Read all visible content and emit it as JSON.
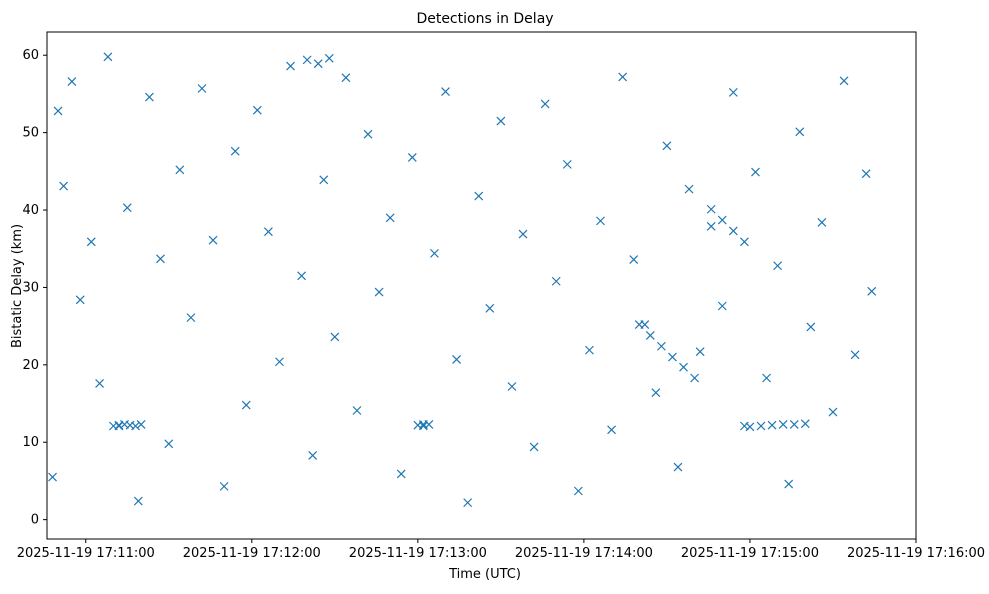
{
  "chart_data": {
    "type": "scatter",
    "title": "Detections in Delay",
    "xlabel": "Time (UTC)",
    "ylabel": "Bistatic Delay (km)",
    "xlim": [
      "2025-11-19 17:10:46",
      "2025-11-19 17:16:00"
    ],
    "ylim": [
      -2.5,
      63
    ],
    "x_ticks": [
      "2025-11-19 17:11:00",
      "2025-11-19 17:12:00",
      "2025-11-19 17:13:00",
      "2025-11-19 17:14:00",
      "2025-11-19 17:15:00",
      "2025-11-19 17:16:00"
    ],
    "y_ticks": [
      "0",
      "10",
      "20",
      "30",
      "40",
      "50",
      "60"
    ],
    "marker": "x",
    "grid": false,
    "legend": "none",
    "colors": {
      "marker": "#1f77b4"
    },
    "series": [
      {
        "x": [
          "2025-11-19 17:10:48",
          "2025-11-19 17:10:50",
          "2025-11-19 17:10:52",
          "2025-11-19 17:10:55",
          "2025-11-19 17:10:58",
          "2025-11-19 17:11:02",
          "2025-11-19 17:11:05",
          "2025-11-19 17:11:08",
          "2025-11-19 17:11:12",
          "2025-11-19 17:11:15",
          "2025-11-19 17:11:19",
          "2025-11-19 17:11:23",
          "2025-11-19 17:11:27",
          "2025-11-19 17:11:30",
          "2025-11-19 17:11:34",
          "2025-11-19 17:11:38",
          "2025-11-19 17:11:42",
          "2025-11-19 17:11:46",
          "2025-11-19 17:11:50",
          "2025-11-19 17:11:54",
          "2025-11-19 17:11:58",
          "2025-11-19 17:12:02",
          "2025-11-19 17:12:06",
          "2025-11-19 17:12:10",
          "2025-11-19 17:12:14",
          "2025-11-19 17:12:18",
          "2025-11-19 17:12:22",
          "2025-11-19 17:12:26",
          "2025-11-19 17:12:30",
          "2025-11-19 17:12:34",
          "2025-11-19 17:12:38",
          "2025-11-19 17:12:42",
          "2025-11-19 17:12:46",
          "2025-11-19 17:12:50",
          "2025-11-19 17:12:54",
          "2025-11-19 17:12:58",
          "2025-11-19 17:13:02",
          "2025-11-19 17:13:06",
          "2025-11-19 17:13:10",
          "2025-11-19 17:13:14",
          "2025-11-19 17:13:18",
          "2025-11-19 17:13:22",
          "2025-11-19 17:13:26",
          "2025-11-19 17:13:30",
          "2025-11-19 17:13:34",
          "2025-11-19 17:13:38",
          "2025-11-19 17:13:42",
          "2025-11-19 17:13:46",
          "2025-11-19 17:13:50",
          "2025-11-19 17:13:54",
          "2025-11-19 17:13:58",
          "2025-11-19 17:14:02",
          "2025-11-19 17:14:06",
          "2025-11-19 17:14:10",
          "2025-11-19 17:14:14",
          "2025-11-19 17:14:18",
          "2025-11-19 17:14:22",
          "2025-11-19 17:14:26",
          "2025-11-19 17:14:30",
          "2025-11-19 17:14:34",
          "2025-11-19 17:14:38",
          "2025-11-19 17:14:42",
          "2025-11-19 17:14:46",
          "2025-11-19 17:14:50",
          "2025-11-19 17:14:54",
          "2025-11-19 17:14:58",
          "2025-11-19 17:15:02",
          "2025-11-19 17:15:06",
          "2025-11-19 17:15:10",
          "2025-11-19 17:15:14",
          "2025-11-19 17:15:18",
          "2025-11-19 17:15:22",
          "2025-11-19 17:15:26",
          "2025-11-19 17:15:30",
          "2025-11-19 17:15:34",
          "2025-11-19 17:15:38",
          "2025-11-19 17:15:42",
          "2025-11-19 17:15:44",
          "2025-11-19 17:11:10",
          "2025-11-19 17:11:12",
          "2025-11-19 17:11:14",
          "2025-11-19 17:11:16",
          "2025-11-19 17:11:18",
          "2025-11-19 17:11:20",
          "2025-11-19 17:13:00",
          "2025-11-19 17:13:02",
          "2025-11-19 17:13:04",
          "2025-11-19 17:12:20",
          "2025-11-19 17:12:24",
          "2025-11-19 17:12:28",
          "2025-11-19 17:15:00",
          "2025-11-19 17:15:04",
          "2025-11-19 17:15:08",
          "2025-11-19 17:15:12",
          "2025-11-19 17:15:16",
          "2025-11-19 17:15:20",
          "2025-11-19 17:14:46",
          "2025-11-19 17:14:50",
          "2025-11-19 17:14:54",
          "2025-11-19 17:14:58",
          "2025-11-19 17:14:20",
          "2025-11-19 17:14:24",
          "2025-11-19 17:14:28",
          "2025-11-19 17:14:32",
          "2025-11-19 17:14:36",
          "2025-11-19 17:14:40"
        ],
        "y": [
          5.5,
          52.8,
          43.1,
          56.6,
          28.4,
          35.9,
          17.6,
          59.8,
          12.1,
          40.3,
          2.4,
          54.6,
          33.7,
          9.8,
          45.2,
          26.1,
          55.7,
          36.1,
          4.3,
          47.6,
          14.8,
          52.9,
          37.2,
          20.4,
          58.6,
          31.5,
          8.3,
          43.9,
          23.6,
          57.1,
          14.1,
          49.8,
          29.4,
          39.0,
          5.9,
          46.8,
          12.3,
          34.4,
          55.3,
          20.7,
          2.2,
          41.8,
          27.3,
          51.5,
          17.2,
          36.9,
          9.4,
          53.7,
          30.8,
          45.9,
          3.7,
          21.9,
          38.6,
          11.6,
          57.2,
          33.6,
          25.2,
          16.4,
          48.3,
          6.8,
          42.7,
          21.7,
          37.9,
          27.6,
          55.2,
          12.1,
          44.9,
          18.3,
          32.8,
          4.6,
          50.1,
          24.9,
          38.4,
          13.9,
          56.7,
          21.3,
          44.7,
          29.5,
          12.1,
          12.2,
          12.3,
          12.2,
          12.1,
          12.3,
          12.2,
          12.1,
          12.3,
          59.4,
          58.9,
          59.6,
          12.0,
          12.1,
          12.2,
          12.3,
          12.3,
          12.4,
          40.1,
          38.7,
          37.3,
          35.9,
          25.2,
          23.8,
          22.4,
          21.0,
          19.7,
          18.3
        ]
      }
    ]
  }
}
